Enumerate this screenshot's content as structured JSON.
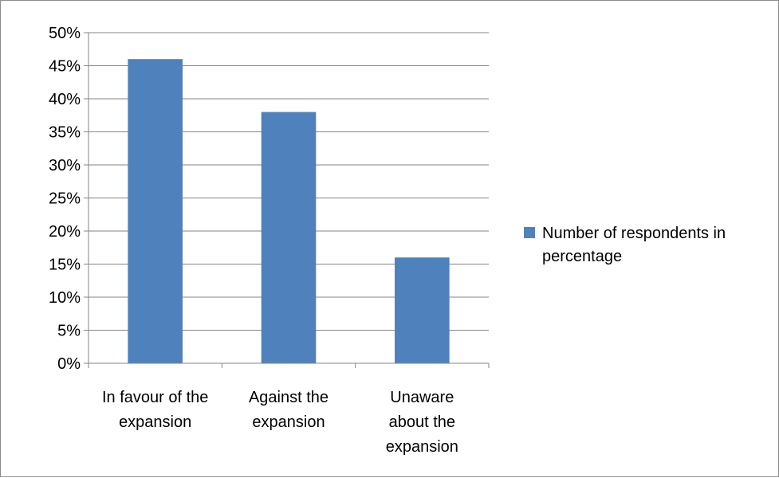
{
  "chart_data": {
    "type": "bar",
    "categories": [
      [
        "In favour of the",
        "expansion"
      ],
      [
        "Against the",
        "expansion"
      ],
      [
        "Unaware",
        "about the",
        "expansion"
      ]
    ],
    "series": [
      {
        "name": "Number of respondents in percentage",
        "values": [
          46,
          38,
          16
        ],
        "color": "#4f81bd"
      }
    ],
    "ylim": [
      0,
      50
    ],
    "y_ticks": [
      "0%",
      "5%",
      "10%",
      "15%",
      "20%",
      "25%",
      "30%",
      "35%",
      "40%",
      "45%",
      "50%"
    ],
    "y_step": 5,
    "grid": true,
    "legend": {
      "position": "right",
      "labels": [
        "Number of respondents in",
        "percentage"
      ]
    }
  }
}
